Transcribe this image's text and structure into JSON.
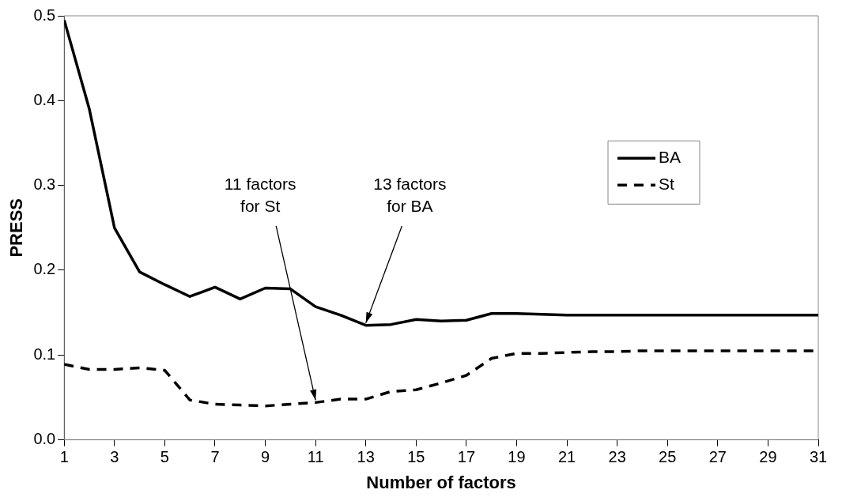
{
  "chart_data": {
    "type": "line",
    "xlabel": "Number of factors",
    "ylabel": "PRESS",
    "x": [
      1,
      2,
      3,
      4,
      5,
      6,
      7,
      8,
      9,
      10,
      11,
      12,
      13,
      14,
      15,
      16,
      17,
      18,
      19,
      20,
      21,
      22,
      23,
      24,
      25,
      26,
      27,
      28,
      29,
      30,
      31
    ],
    "series": [
      {
        "name": "BA",
        "color": "#000000",
        "line_style": "solid",
        "values": [
          0.495,
          0.39,
          0.25,
          0.198,
          0.183,
          0.169,
          0.18,
          0.166,
          0.179,
          0.178,
          0.157,
          0.147,
          0.135,
          0.136,
          0.142,
          0.14,
          0.141,
          0.149,
          0.149,
          0.148,
          0.147,
          0.147,
          0.147,
          0.147,
          0.147,
          0.147,
          0.147,
          0.147,
          0.147,
          0.147,
          0.147
        ]
      },
      {
        "name": "St",
        "color": "#000000",
        "line_style": "dashed",
        "values": [
          0.089,
          0.083,
          0.083,
          0.085,
          0.082,
          0.047,
          0.042,
          0.041,
          0.04,
          0.042,
          0.044,
          0.048,
          0.048,
          0.057,
          0.059,
          0.067,
          0.076,
          0.096,
          0.102,
          0.102,
          0.103,
          0.104,
          0.104,
          0.105,
          0.105,
          0.105,
          0.105,
          0.105,
          0.105,
          0.105,
          0.105
        ]
      }
    ],
    "xlim": [
      1,
      31
    ],
    "xticks": [
      1,
      3,
      5,
      7,
      9,
      11,
      13,
      15,
      17,
      19,
      21,
      23,
      25,
      27,
      29,
      31
    ],
    "ylim": [
      0,
      0.5
    ],
    "yticks": [
      {
        "value": 0,
        "label": "0.0"
      },
      0.1,
      0.2,
      0.3,
      0.4,
      0.5
    ],
    "annotations": [
      {
        "text": "11 factors\nfor St",
        "x": 11,
        "y": 0.044
      },
      {
        "text": "13 factors\nfor BA",
        "x": 13,
        "y": 0.135
      }
    ],
    "grid": false,
    "legend": "right",
    "marker": "none"
  }
}
